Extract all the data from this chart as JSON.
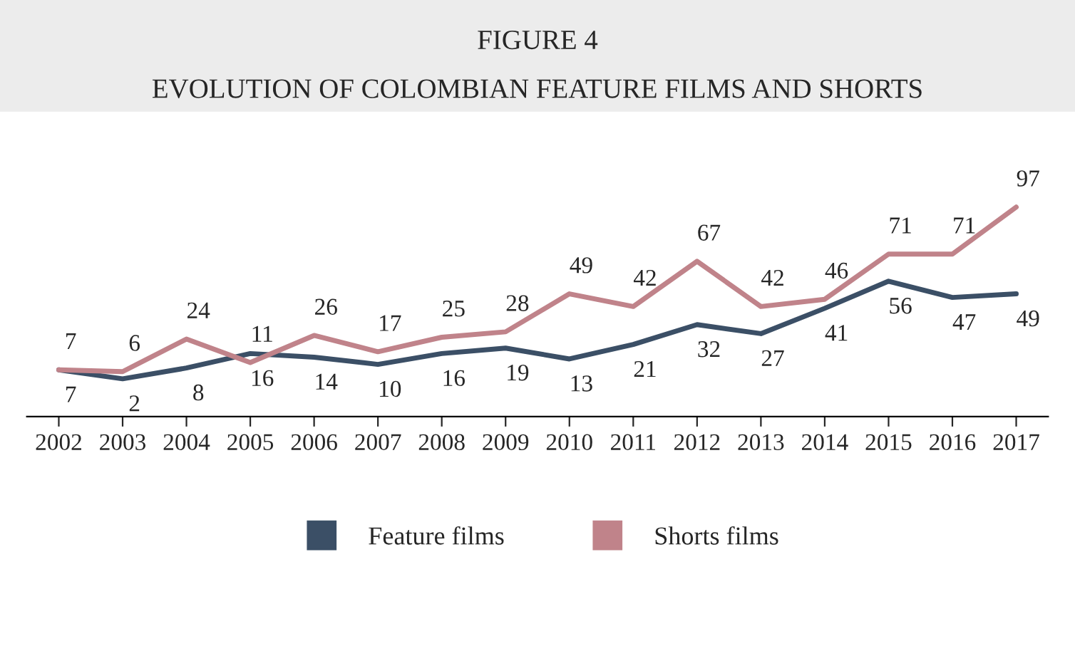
{
  "chart_data": {
    "type": "line",
    "title": "FIGURE 4",
    "subtitle": "EVOLUTION OF COLOMBIAN FEATURE FILMS AND SHORTS",
    "categories": [
      "2002",
      "2003",
      "2004",
      "2005",
      "2006",
      "2007",
      "2008",
      "2009",
      "2010",
      "2011",
      "2012",
      "2013",
      "2014",
      "2015",
      "2016",
      "2017"
    ],
    "series": [
      {
        "name": "Feature films",
        "color": "#3b4f66",
        "values": [
          7,
          2,
          8,
          16,
          14,
          10,
          16,
          19,
          13,
          21,
          32,
          27,
          41,
          56,
          47,
          49
        ]
      },
      {
        "name": "Shorts films",
        "color": "#c0838a",
        "values": [
          7,
          6,
          24,
          11,
          26,
          17,
          25,
          28,
          49,
          42,
          67,
          42,
          46,
          71,
          71,
          97
        ]
      }
    ],
    "data_labels": true,
    "legend": "bottom",
    "grid": false,
    "marker": "none",
    "line_style": "solid"
  }
}
